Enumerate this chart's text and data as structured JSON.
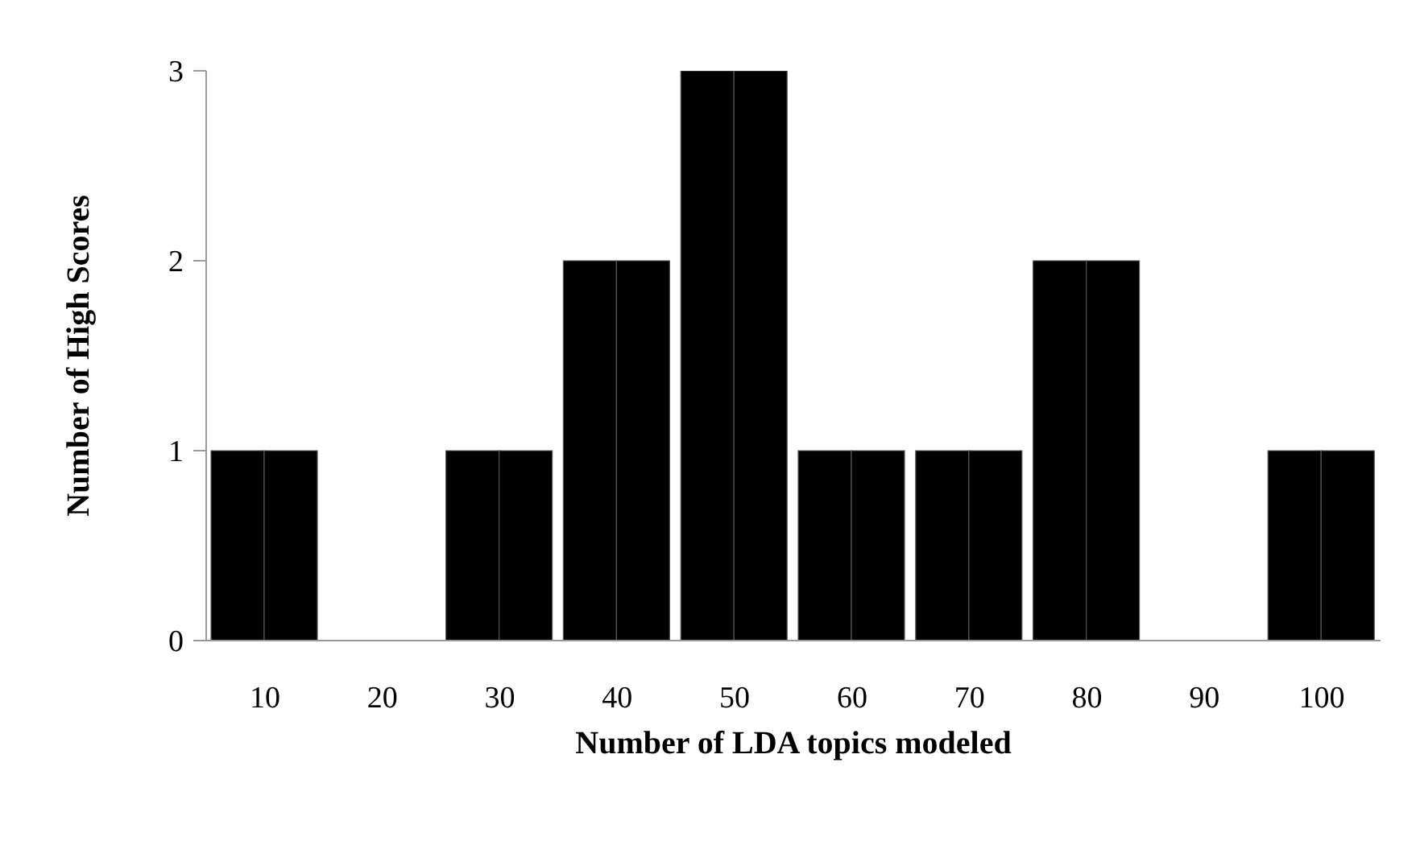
{
  "chart_data": {
    "type": "bar",
    "xlabel": "Number of LDA topics modeled",
    "ylabel": "Number of High Scores",
    "categories": [
      "10",
      "20",
      "30",
      "40",
      "50",
      "60",
      "70",
      "80",
      "90",
      "100"
    ],
    "series": [
      {
        "color": "#000000",
        "values": [
          1,
          0,
          1,
          2,
          3,
          1,
          1,
          2,
          0,
          1
        ]
      },
      {
        "color": "#000000",
        "values": [
          1,
          0,
          1,
          2,
          3,
          1,
          1,
          2,
          0,
          1
        ]
      }
    ],
    "ylim": [
      0,
      3
    ],
    "yticks": [
      0,
      1,
      2,
      3
    ],
    "grid": false,
    "legend": false
  }
}
